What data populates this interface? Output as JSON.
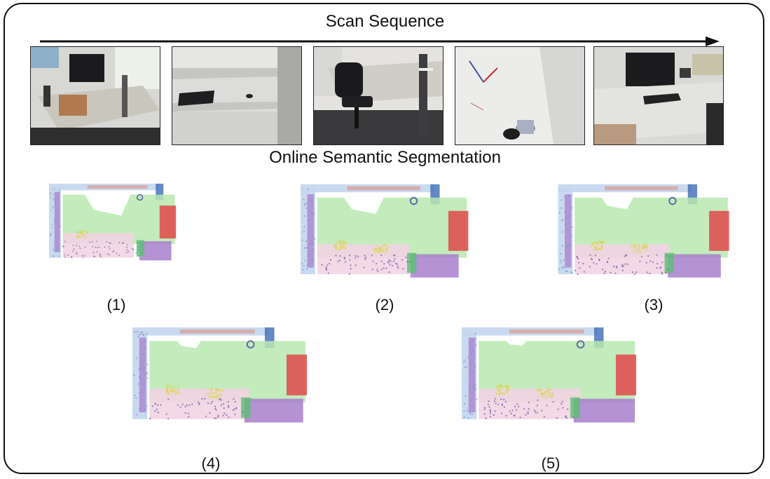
{
  "header": {
    "title": "Scan Sequence"
  },
  "section": {
    "title": "Online Semantic Segmentation"
  },
  "photos": [
    {
      "icon": "office-desk-photo"
    },
    {
      "icon": "empty-shelf-photo"
    },
    {
      "icon": "office-chair-photo"
    },
    {
      "icon": "whiteboard-corner-photo"
    },
    {
      "icon": "monitor-desk-photo"
    }
  ],
  "segmentations": [
    {
      "caption": "(1)",
      "progress": 0.55
    },
    {
      "caption": "(2)",
      "progress": 0.75
    },
    {
      "caption": "(3)",
      "progress": 0.85
    },
    {
      "caption": "(4)",
      "progress": 0.95
    },
    {
      "caption": "(5)",
      "progress": 1.0
    }
  ],
  "colors": {
    "wall": "#c3d6ee",
    "floor": "#b9e8b0",
    "cabinet": "#e0484a",
    "desk": "#f2d4e2",
    "chair": "#d8d44a",
    "shelf": "#a77fcb",
    "table": "#d7a8a4",
    "door": "#3e6cb7"
  }
}
